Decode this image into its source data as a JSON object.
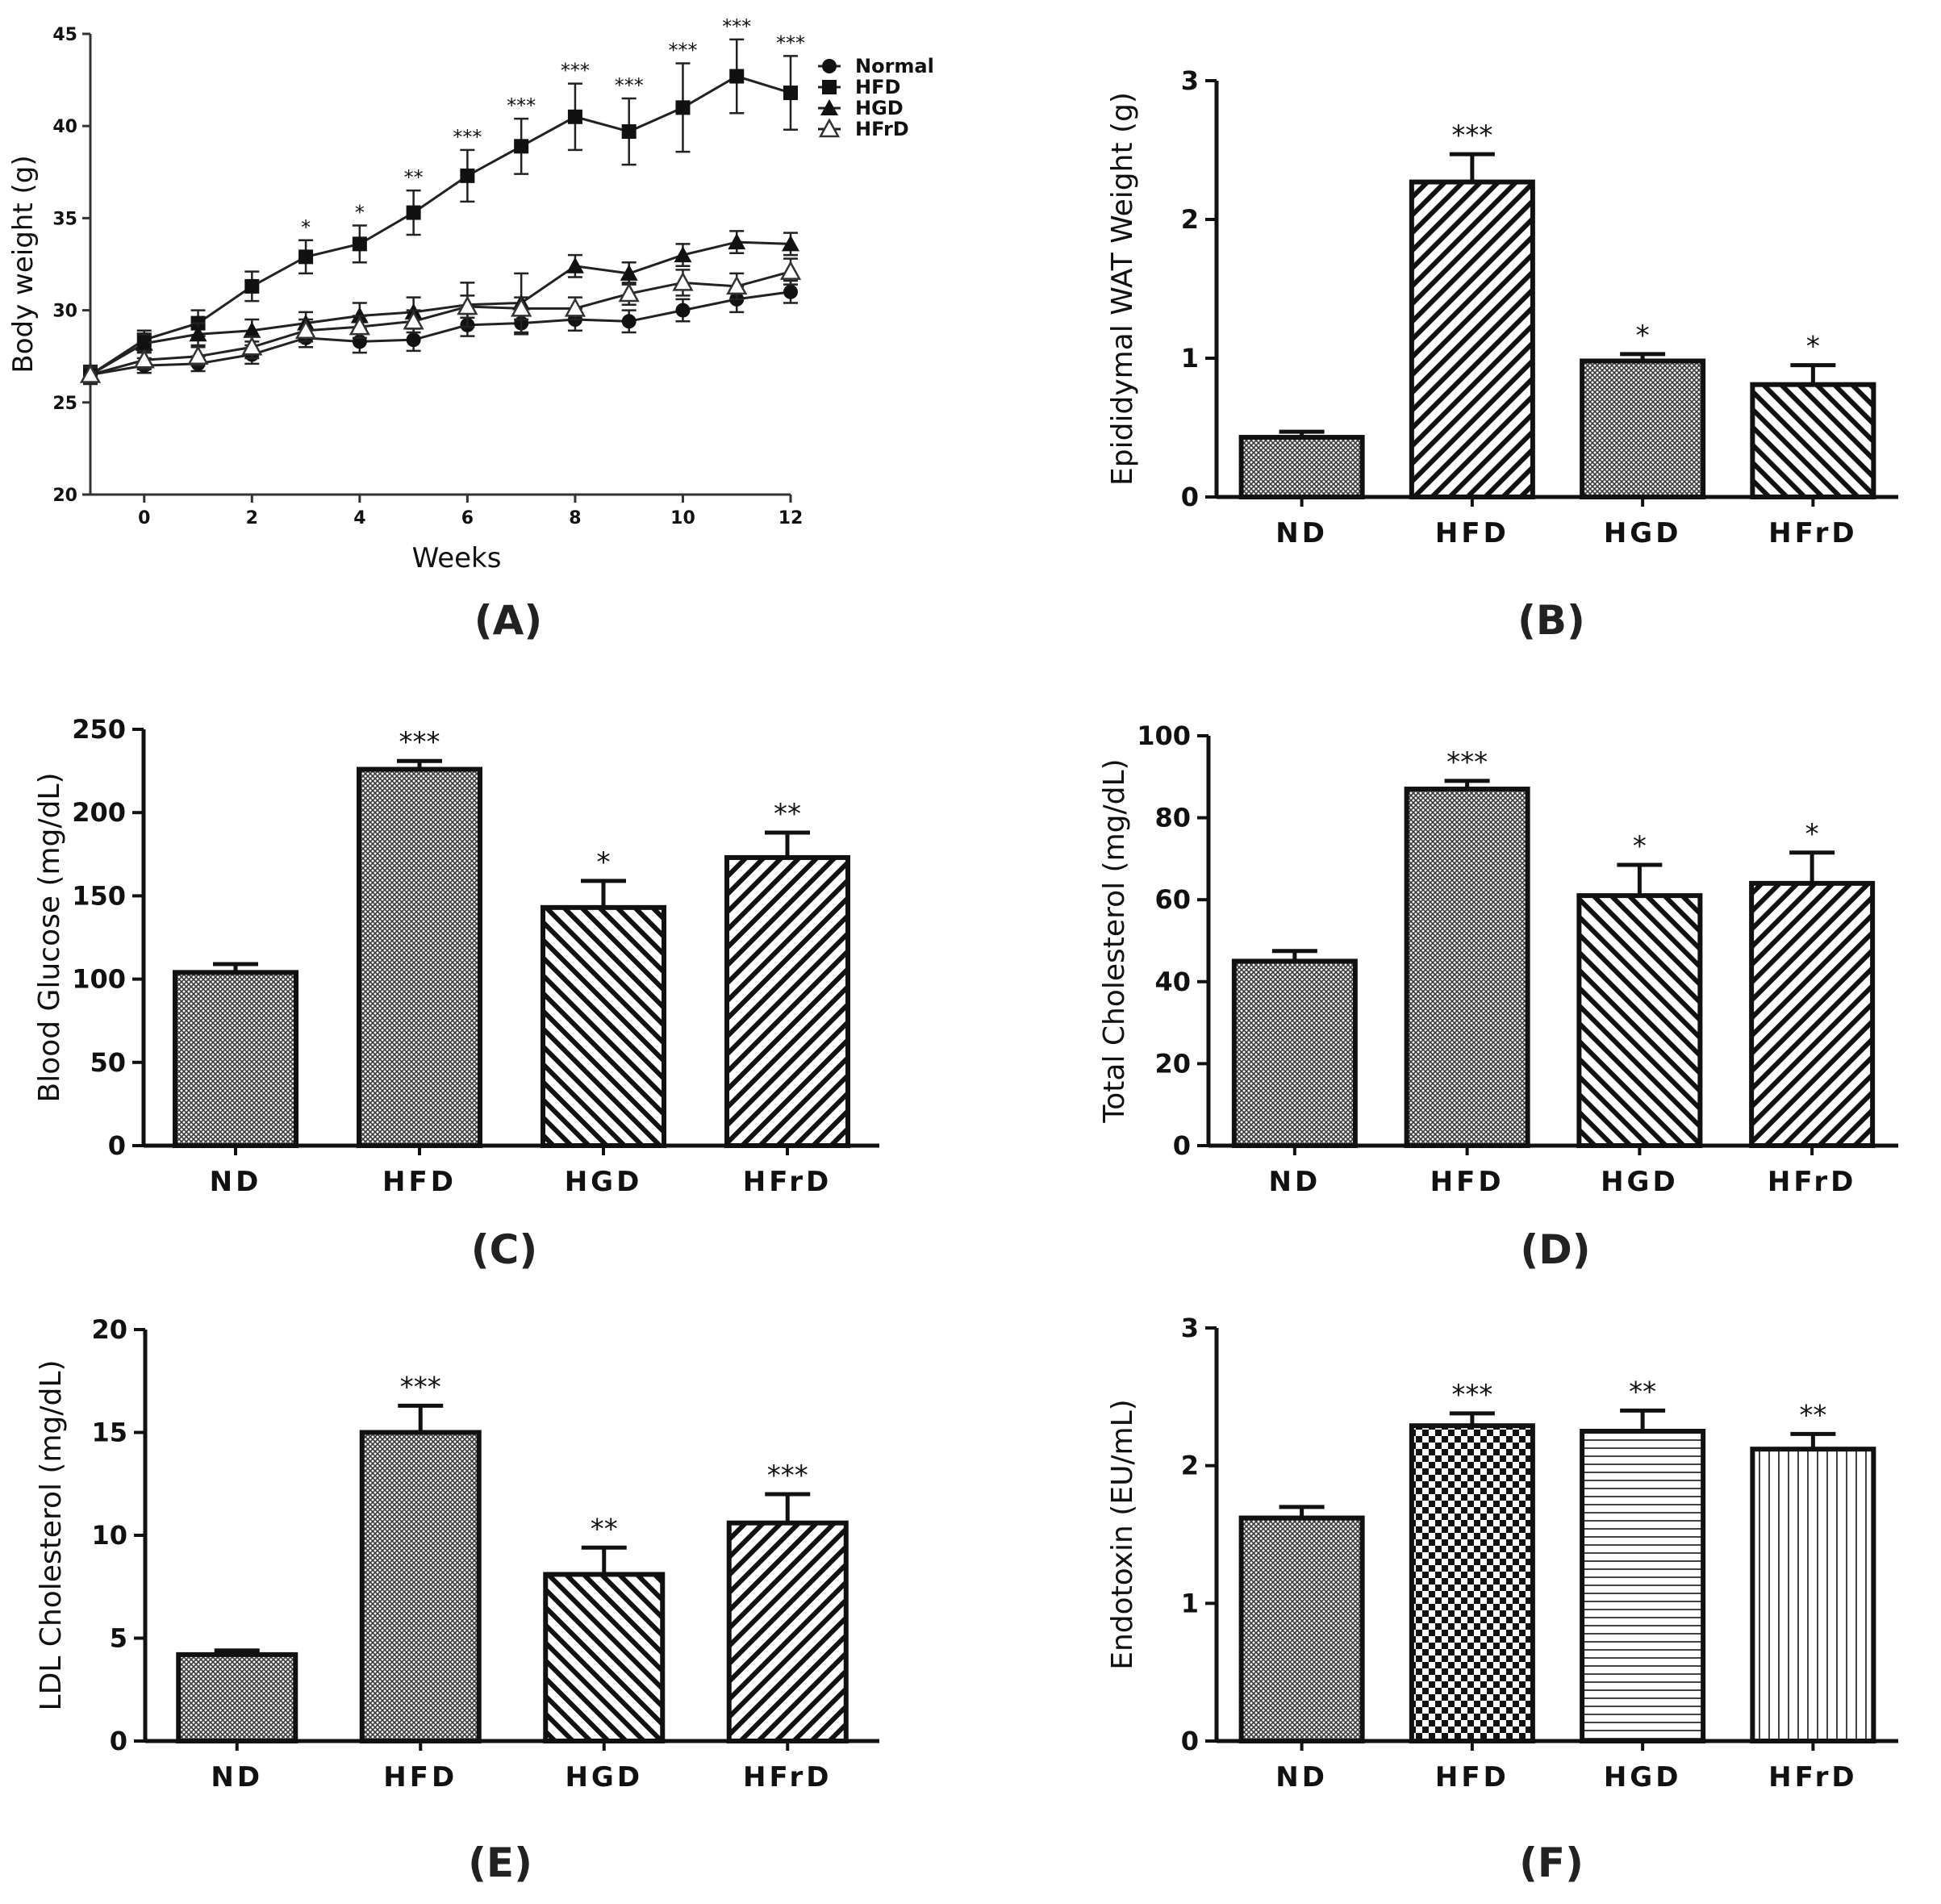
{
  "panels": {
    "a": "(A)",
    "b": "(B)",
    "c": "(C)",
    "d": "(D)",
    "e": "(E)",
    "f": "(F)"
  },
  "chart_data": [
    {
      "id": "a",
      "type": "line",
      "title": "",
      "xlabel": "Weeks",
      "ylabel": "Body weight (g)",
      "xlim": [
        -1,
        12
      ],
      "ylim": [
        20,
        45
      ],
      "xticks": [
        0,
        2,
        4,
        6,
        8,
        10,
        12
      ],
      "yticks": [
        20,
        25,
        30,
        35,
        40,
        45
      ],
      "x": [
        -1,
        0,
        1,
        2,
        3,
        4,
        5,
        6,
        7,
        8,
        9,
        10,
        11,
        12
      ],
      "series": [
        {
          "name": "Normal",
          "marker": "circle",
          "values": [
            26.5,
            27.0,
            27.1,
            27.6,
            28.5,
            28.3,
            28.4,
            29.2,
            29.3,
            29.5,
            29.4,
            30.0,
            30.6,
            31.0
          ],
          "errors": [
            0.4,
            0.4,
            0.4,
            0.5,
            0.5,
            0.6,
            0.6,
            0.6,
            0.6,
            0.6,
            0.6,
            0.6,
            0.7,
            0.6
          ]
        },
        {
          "name": "HFD",
          "marker": "square",
          "values": [
            26.5,
            28.4,
            29.3,
            31.3,
            32.9,
            33.6,
            35.3,
            37.3,
            38.9,
            40.5,
            39.7,
            41.0,
            42.7,
            41.8
          ],
          "errors": [
            0.5,
            0.5,
            0.7,
            0.8,
            0.9,
            1.0,
            1.2,
            1.4,
            1.5,
            1.8,
            1.8,
            2.4,
            2.0,
            2.0
          ],
          "annotations": [
            "",
            "",
            "",
            "",
            "*",
            "*",
            "**",
            "***",
            "***",
            "***",
            "***",
            "***",
            "***",
            "***"
          ]
        },
        {
          "name": "HGD",
          "marker": "triangle",
          "values": [
            26.5,
            28.2,
            28.7,
            28.9,
            29.3,
            29.7,
            29.9,
            30.3,
            30.4,
            32.4,
            32.0,
            33.0,
            33.7,
            33.6
          ],
          "errors": [
            0.4,
            0.5,
            0.6,
            0.6,
            0.6,
            0.7,
            0.8,
            1.2,
            1.6,
            0.6,
            0.6,
            0.6,
            0.6,
            0.6
          ]
        },
        {
          "name": "HFrD",
          "marker": "open-triangle",
          "values": [
            26.5,
            27.3,
            27.5,
            28.0,
            28.9,
            29.1,
            29.4,
            30.2,
            30.1,
            30.1,
            30.9,
            31.5,
            31.3,
            32.1
          ],
          "errors": [
            0.4,
            0.5,
            0.5,
            0.6,
            0.6,
            0.6,
            0.6,
            0.6,
            0.6,
            0.6,
            0.6,
            0.7,
            0.7,
            0.7
          ]
        }
      ]
    },
    {
      "id": "b",
      "type": "bar",
      "title": "",
      "xlabel": "",
      "ylabel": "Epididymal WAT Weight (g)",
      "ylim": [
        0,
        3
      ],
      "yticks": [
        0,
        1,
        2,
        3
      ],
      "categories": [
        "ND",
        "HFD",
        "HGD",
        "HFrD"
      ],
      "values": [
        0.43,
        2.27,
        0.98,
        0.81
      ],
      "errors": [
        0.04,
        0.2,
        0.05,
        0.14
      ],
      "annotations": [
        "",
        "***",
        "*",
        "*"
      ],
      "patterns": [
        "dense-dots",
        "diag-up",
        "dense-dots",
        "diag-down"
      ]
    },
    {
      "id": "c",
      "type": "bar",
      "title": "",
      "xlabel": "",
      "ylabel": "Blood Glucose (mg/dL)",
      "ylim": [
        0,
        250
      ],
      "yticks": [
        0,
        50,
        100,
        150,
        200,
        250
      ],
      "categories": [
        "ND",
        "HFD",
        "HGD",
        "HFrD"
      ],
      "values": [
        104,
        226,
        143,
        173
      ],
      "errors": [
        5,
        5,
        16,
        15
      ],
      "annotations": [
        "",
        "***",
        "*",
        "**"
      ],
      "patterns": [
        "dense-dots",
        "dense-dots",
        "diag-down",
        "diag-up"
      ]
    },
    {
      "id": "d",
      "type": "bar",
      "title": "",
      "xlabel": "",
      "ylabel": "Total Cholesterol (mg/dL)",
      "ylim": [
        0,
        100
      ],
      "yticks": [
        0,
        20,
        40,
        60,
        80,
        100
      ],
      "categories": [
        "ND",
        "HFD",
        "HGD",
        "HFrD"
      ],
      "values": [
        45,
        87,
        61,
        64
      ],
      "errors": [
        2.5,
        2,
        7.5,
        7.5
      ],
      "annotations": [
        "",
        "***",
        "*",
        "*"
      ],
      "patterns": [
        "dense-dots",
        "dense-dots",
        "diag-down",
        "diag-up"
      ]
    },
    {
      "id": "e",
      "type": "bar",
      "title": "",
      "xlabel": "",
      "ylabel": "LDL Cholesterol (mg/dL)",
      "ylim": [
        0,
        20
      ],
      "yticks": [
        0,
        5,
        10,
        15,
        20
      ],
      "categories": [
        "ND",
        "HFD",
        "HGD",
        "HFrD"
      ],
      "values": [
        4.2,
        15.0,
        8.1,
        10.6
      ],
      "errors": [
        0.2,
        1.3,
        1.3,
        1.4
      ],
      "annotations": [
        "",
        "***",
        "**",
        "***"
      ],
      "patterns": [
        "dense-dots",
        "dense-dots",
        "diag-down",
        "diag-up"
      ]
    },
    {
      "id": "f",
      "type": "bar",
      "title": "",
      "xlabel": "",
      "ylabel": "Endotoxin (EU/mL)",
      "ylim": [
        0,
        3
      ],
      "yticks": [
        0,
        1,
        2,
        3
      ],
      "categories": [
        "ND",
        "HFD",
        "HGD",
        "HFrD"
      ],
      "values": [
        1.62,
        2.29,
        2.25,
        2.12
      ],
      "errors": [
        0.08,
        0.09,
        0.15,
        0.11
      ],
      "annotations": [
        "",
        "***",
        "**",
        "**"
      ],
      "patterns": [
        "dense-dots",
        "checker",
        "horizontal",
        "vertical"
      ]
    }
  ]
}
